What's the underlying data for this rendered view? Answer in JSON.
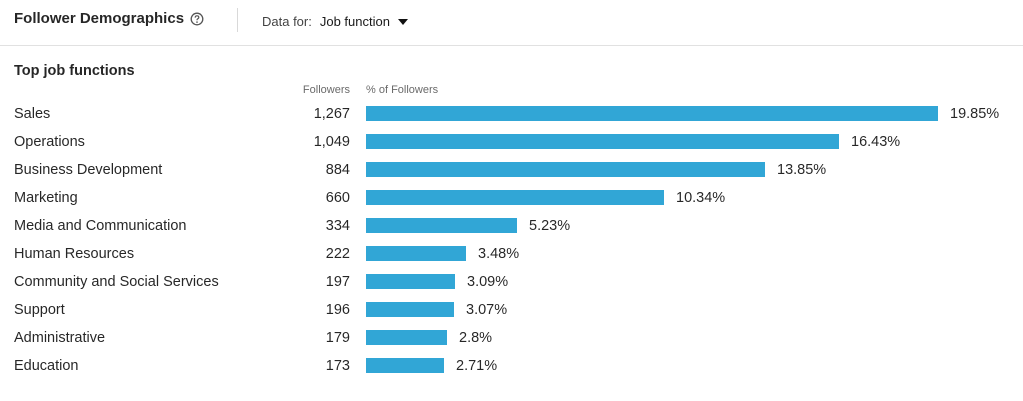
{
  "header": {
    "title": "Follower Demographics",
    "data_for_label": "Data for:",
    "data_for_value": "Job function"
  },
  "section": {
    "title": "Top job functions",
    "col_followers": "Followers",
    "col_pct": "% of Followers"
  },
  "colors": {
    "bar": "#31a6d6"
  },
  "chart_data": {
    "type": "bar",
    "categories": [
      "Sales",
      "Operations",
      "Business Development",
      "Marketing",
      "Media and Communication",
      "Human Resources",
      "Community and Social Services",
      "Support",
      "Administrative",
      "Education"
    ],
    "followers": [
      "1,267",
      "1,049",
      "884",
      "660",
      "334",
      "222",
      "197",
      "196",
      "179",
      "173"
    ],
    "pct_labels": [
      "19.85%",
      "16.43%",
      "13.85%",
      "10.34%",
      "5.23%",
      "3.48%",
      "3.09%",
      "3.07%",
      "2.8%",
      "2.71%"
    ],
    "values": [
      19.85,
      16.43,
      13.85,
      10.34,
      5.23,
      3.48,
      3.09,
      3.07,
      2.8,
      2.71
    ]
  }
}
